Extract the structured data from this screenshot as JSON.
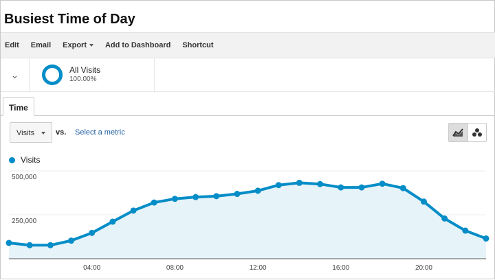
{
  "title": "Busiest Time of Day",
  "toolbar": {
    "edit": "Edit",
    "email": "Email",
    "export": "Export",
    "dashboard": "Add to Dashboard",
    "shortcut": "Shortcut"
  },
  "segment": {
    "name": "All Visits",
    "percent": "100.00%"
  },
  "tabs": [
    {
      "label": "Time"
    }
  ],
  "controls": {
    "metric": "Visits",
    "vs": "vs.",
    "select_metric": "Select a metric"
  },
  "colors": {
    "series": "#058dc7",
    "fill": "#e6f3f9"
  },
  "chart_data": {
    "type": "area",
    "legend": "top-left",
    "series": [
      {
        "name": "Visits",
        "values": [
          90000,
          77000,
          77000,
          103000,
          147000,
          211000,
          274000,
          320000,
          341000,
          351000,
          356000,
          369000,
          387000,
          419000,
          432000,
          425000,
          406000,
          406000,
          427000,
          402000,
          325000,
          229000,
          160000,
          115000
        ]
      }
    ],
    "x": [
      "00:00",
      "01:00",
      "02:00",
      "03:00",
      "04:00",
      "05:00",
      "06:00",
      "07:00",
      "08:00",
      "09:00",
      "10:00",
      "11:00",
      "12:00",
      "13:00",
      "14:00",
      "15:00",
      "16:00",
      "17:00",
      "18:00",
      "19:00",
      "20:00",
      "21:00",
      "22:00",
      "23:00"
    ],
    "x_tick_labels": [
      "04:00",
      "08:00",
      "12:00",
      "16:00",
      "20:00"
    ],
    "y_tick_labels": [
      "500,000",
      "250,000"
    ],
    "ylim": [
      0,
      500000
    ],
    "grid": true
  }
}
